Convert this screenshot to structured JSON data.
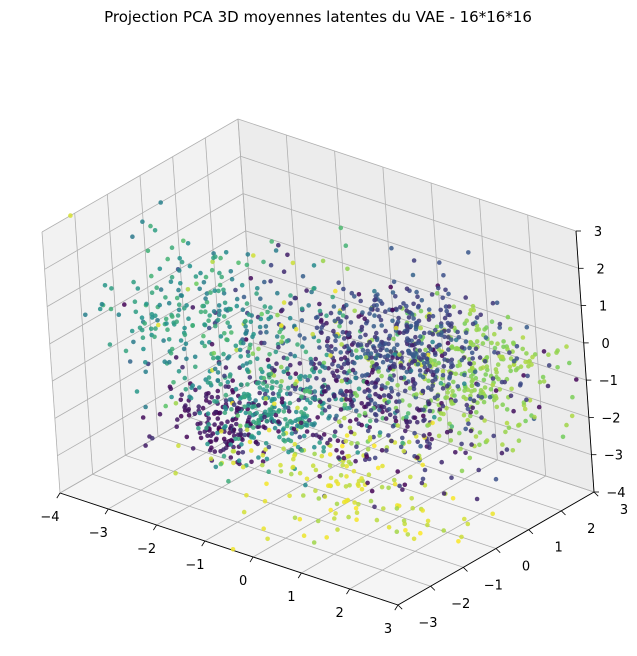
{
  "chart_data": {
    "type": "scatter",
    "projection": "3d",
    "title": "Projection PCA 3D moyennes latentes du VAE - 16*16*16",
    "xlabel": "",
    "ylabel": "",
    "zlabel": "",
    "xlim": [
      -4,
      3
    ],
    "ylim": [
      -3,
      3
    ],
    "zlim": [
      -4,
      3
    ],
    "x_ticks": [
      "−4",
      "−3",
      "−2",
      "−1",
      "0",
      "1",
      "2",
      "3"
    ],
    "y_ticks": [
      "−3",
      "−2",
      "−1",
      "0",
      "1",
      "2",
      "3"
    ],
    "z_ticks": [
      "−4",
      "−3",
      "−2",
      "−1",
      "0",
      "1",
      "2",
      "3"
    ],
    "grid": true,
    "colormap": "viridis",
    "colormap_stops": [
      "#440154",
      "#3b528b",
      "#21918c",
      "#5ec962",
      "#fde725"
    ],
    "point_count": 2000,
    "clusters": [
      {
        "center": [
          -2.3,
          -0.4,
          -2.6
        ],
        "spread": [
          0.45,
          0.45,
          0.4
        ],
        "color_range": [
          0.0,
          0.1
        ],
        "weight": 0.08
      },
      {
        "center": [
          -1.5,
          -0.2,
          -2.1
        ],
        "spread": [
          0.6,
          0.6,
          0.6
        ],
        "color_range": [
          0.45,
          0.62
        ],
        "weight": 0.11
      },
      {
        "center": [
          0.9,
          0.7,
          0.2
        ],
        "spread": [
          0.9,
          0.7,
          0.7
        ],
        "color_range": [
          0.15,
          0.32
        ],
        "weight": 0.18
      },
      {
        "center": [
          1.3,
          1.9,
          -1.1
        ],
        "spread": [
          0.8,
          0.8,
          0.7
        ],
        "color_range": [
          0.78,
          0.88
        ],
        "weight": 0.15
      },
      {
        "center": [
          0.4,
          0.2,
          -1.0
        ],
        "spread": [
          1.1,
          1.0,
          0.9
        ],
        "color_range": [
          0.0,
          0.22
        ],
        "weight": 0.15
      },
      {
        "center": [
          -1.6,
          -1.8,
          1.2
        ],
        "spread": [
          0.9,
          0.8,
          0.8
        ],
        "color_range": [
          0.4,
          0.65
        ],
        "weight": 0.11
      },
      {
        "center": [
          -0.5,
          0.0,
          -0.4
        ],
        "spread": [
          1.3,
          1.2,
          1.2
        ],
        "color_range": [
          0.0,
          1.0
        ],
        "weight": 0.14
      },
      {
        "center": [
          0.3,
          -0.8,
          -3.0
        ],
        "spread": [
          1.1,
          1.0,
          0.6
        ],
        "color_range": [
          0.85,
          1.0
        ],
        "weight": 0.08
      }
    ]
  }
}
